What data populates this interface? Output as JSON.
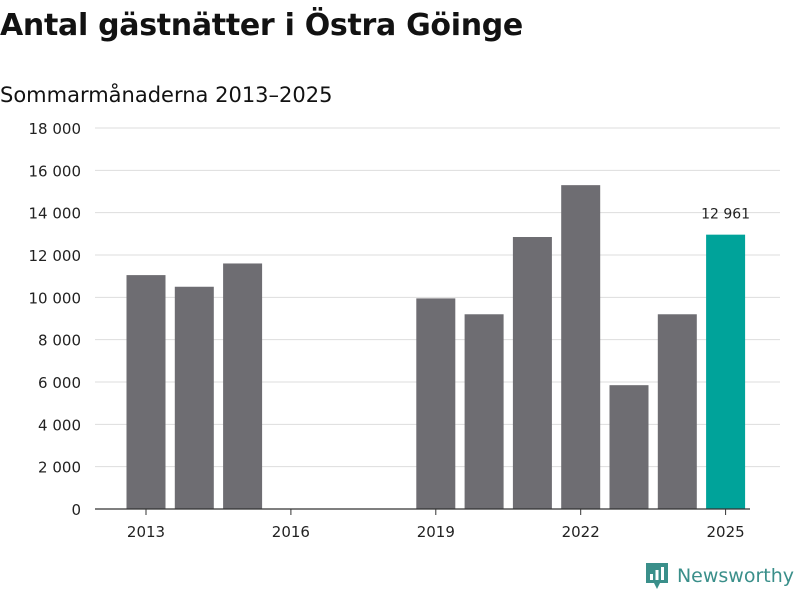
{
  "header": {
    "title": "Antal gästnätter i Östra Göinge",
    "subtitle": "Sommarmånaderna 2013–2025"
  },
  "brand": {
    "name": "Newsworthy",
    "icon": "newsworthy-logo-icon",
    "color": "#3a8f8a"
  },
  "chart_data": {
    "type": "bar",
    "title": "Antal gästnätter i Östra Göinge",
    "subtitle": "Sommarmånaderna 2013–2025",
    "xlabel": "",
    "ylabel": "",
    "categories": [
      "2013",
      "2014",
      "2015",
      "2016",
      "2017",
      "2018",
      "2019",
      "2020",
      "2021",
      "2022",
      "2023",
      "2024",
      "2025"
    ],
    "values": [
      11050,
      10500,
      11600,
      null,
      null,
      null,
      9950,
      9200,
      12850,
      15300,
      5850,
      9200,
      12961
    ],
    "x_tick_labels": [
      "2013",
      "2016",
      "2019",
      "2022",
      "2025"
    ],
    "ylim": [
      0,
      18000
    ],
    "y_ticks": [
      0,
      2000,
      4000,
      6000,
      8000,
      10000,
      12000,
      14000,
      16000,
      18000
    ],
    "y_tick_labels": [
      "0",
      "2 000",
      "4 000",
      "6 000",
      "8 000",
      "10 000",
      "12 000",
      "14 000",
      "16 000",
      "18 000"
    ],
    "highlight": {
      "category": "2025",
      "label": "12 961"
    },
    "grid": true,
    "legend": "none",
    "colors": {
      "bar": "#6e6d72",
      "highlight": "#00a39a",
      "grid": "#dddddd",
      "axis": "#333333"
    }
  }
}
